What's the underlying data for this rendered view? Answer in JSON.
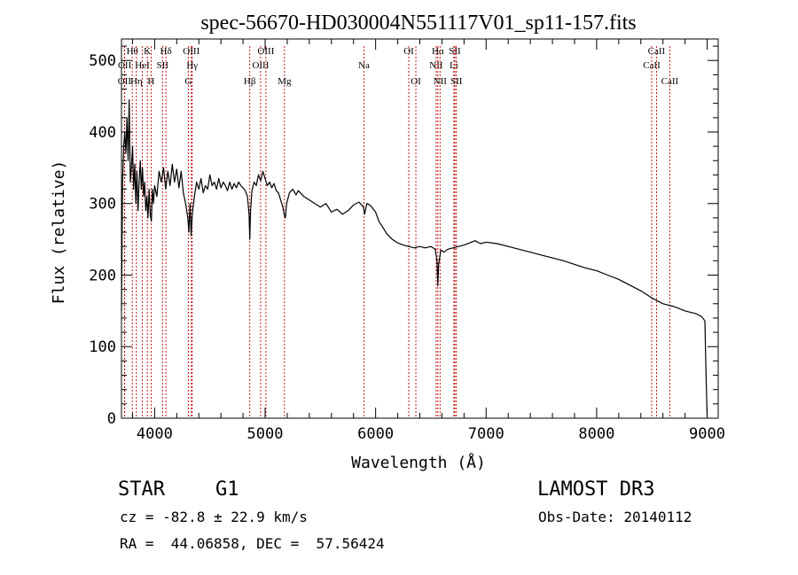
{
  "chart_data": {
    "type": "line",
    "title": "spec-56670-HD030004N551117V01_sp11-157.fits",
    "xlabel": "Wavelength (Å)",
    "ylabel": "Flux (relative)",
    "xlim": [
      3700,
      9100
    ],
    "ylim": [
      0,
      530
    ],
    "xticks": [
      4000,
      5000,
      6000,
      7000,
      8000,
      9000
    ],
    "yticks": [
      0,
      100,
      200,
      300,
      400,
      500
    ],
    "grid": false,
    "series": [
      {
        "name": "spectrum",
        "color": "#000000",
        "points": [
          [
            3700,
            150
          ],
          [
            3710,
            330
          ],
          [
            3720,
            380
          ],
          [
            3730,
            400
          ],
          [
            3740,
            370
          ],
          [
            3750,
            420
          ],
          [
            3760,
            360
          ],
          [
            3770,
            445
          ],
          [
            3780,
            330
          ],
          [
            3790,
            350
          ],
          [
            3800,
            380
          ],
          [
            3810,
            320
          ],
          [
            3820,
            355
          ],
          [
            3830,
            300
          ],
          [
            3840,
            345
          ],
          [
            3850,
            290
          ],
          [
            3860,
            330
          ],
          [
            3870,
            360
          ],
          [
            3880,
            320
          ],
          [
            3890,
            350
          ],
          [
            3900,
            310
          ],
          [
            3910,
            330
          ],
          [
            3920,
            290
          ],
          [
            3930,
            310
          ],
          [
            3940,
            280
          ],
          [
            3950,
            320
          ],
          [
            3960,
            285
          ],
          [
            3970,
            275
          ],
          [
            3980,
            320
          ],
          [
            3990,
            300
          ],
          [
            4000,
            325
          ],
          [
            4020,
            310
          ],
          [
            4040,
            345
          ],
          [
            4060,
            330
          ],
          [
            4080,
            350
          ],
          [
            4100,
            320
          ],
          [
            4120,
            345
          ],
          [
            4140,
            325
          ],
          [
            4160,
            355
          ],
          [
            4180,
            330
          ],
          [
            4200,
            348
          ],
          [
            4220,
            322
          ],
          [
            4240,
            345
          ],
          [
            4260,
            315
          ],
          [
            4280,
            300
          ],
          [
            4300,
            280
          ],
          [
            4310,
            260
          ],
          [
            4320,
            300
          ],
          [
            4330,
            255
          ],
          [
            4340,
            285
          ],
          [
            4360,
            310
          ],
          [
            4380,
            330
          ],
          [
            4400,
            320
          ],
          [
            4420,
            335
          ],
          [
            4440,
            315
          ],
          [
            4460,
            325
          ],
          [
            4480,
            320
          ],
          [
            4500,
            340
          ],
          [
            4520,
            325
          ],
          [
            4540,
            330
          ],
          [
            4560,
            320
          ],
          [
            4580,
            335
          ],
          [
            4600,
            322
          ],
          [
            4620,
            330
          ],
          [
            4640,
            325
          ],
          [
            4660,
            318
          ],
          [
            4680,
            330
          ],
          [
            4700,
            320
          ],
          [
            4720,
            328
          ],
          [
            4740,
            322
          ],
          [
            4760,
            330
          ],
          [
            4780,
            325
          ],
          [
            4800,
            322
          ],
          [
            4820,
            318
          ],
          [
            4840,
            310
          ],
          [
            4855,
            285
          ],
          [
            4861,
            250
          ],
          [
            4868,
            290
          ],
          [
            4880,
            318
          ],
          [
            4900,
            330
          ],
          [
            4920,
            325
          ],
          [
            4940,
            340
          ],
          [
            4960,
            332
          ],
          [
            4980,
            345
          ],
          [
            5000,
            335
          ],
          [
            5020,
            325
          ],
          [
            5040,
            330
          ],
          [
            5060,
            322
          ],
          [
            5080,
            328
          ],
          [
            5100,
            318
          ],
          [
            5120,
            315
          ],
          [
            5140,
            305
          ],
          [
            5160,
            295
          ],
          [
            5172,
            285
          ],
          [
            5183,
            280
          ],
          [
            5195,
            300
          ],
          [
            5220,
            315
          ],
          [
            5250,
            320
          ],
          [
            5280,
            312
          ],
          [
            5300,
            318
          ],
          [
            5350,
            310
          ],
          [
            5400,
            305
          ],
          [
            5450,
            300
          ],
          [
            5500,
            295
          ],
          [
            5550,
            300
          ],
          [
            5600,
            288
          ],
          [
            5650,
            292
          ],
          [
            5700,
            285
          ],
          [
            5750,
            290
          ],
          [
            5800,
            298
          ],
          [
            5850,
            302
          ],
          [
            5890,
            295
          ],
          [
            5900,
            285
          ],
          [
            5920,
            300
          ],
          [
            5950,
            298
          ],
          [
            6000,
            288
          ],
          [
            6030,
            275
          ],
          [
            6060,
            268
          ],
          [
            6100,
            258
          ],
          [
            6150,
            250
          ],
          [
            6200,
            245
          ],
          [
            6250,
            242
          ],
          [
            6300,
            240
          ],
          [
            6350,
            238
          ],
          [
            6400,
            240
          ],
          [
            6450,
            238
          ],
          [
            6500,
            240
          ],
          [
            6540,
            236
          ],
          [
            6555,
            220
          ],
          [
            6563,
            185
          ],
          [
            6570,
            215
          ],
          [
            6590,
            235
          ],
          [
            6620,
            232
          ],
          [
            6650,
            236
          ],
          [
            6700,
            238
          ],
          [
            6750,
            240
          ],
          [
            6800,
            242
          ],
          [
            6850,
            245
          ],
          [
            6900,
            248
          ],
          [
            6950,
            244
          ],
          [
            7000,
            246
          ],
          [
            7100,
            244
          ],
          [
            7200,
            240
          ],
          [
            7300,
            236
          ],
          [
            7400,
            232
          ],
          [
            7500,
            228
          ],
          [
            7600,
            224
          ],
          [
            7700,
            220
          ],
          [
            7800,
            215
          ],
          [
            7900,
            210
          ],
          [
            8000,
            206
          ],
          [
            8100,
            200
          ],
          [
            8200,
            194
          ],
          [
            8300,
            186
          ],
          [
            8400,
            178
          ],
          [
            8500,
            168
          ],
          [
            8600,
            160
          ],
          [
            8700,
            156
          ],
          [
            8800,
            150
          ],
          [
            8900,
            146
          ],
          [
            8950,
            142
          ],
          [
            8980,
            136
          ],
          [
            8990,
            60
          ],
          [
            9000,
            5
          ]
        ]
      }
    ],
    "lines": [
      {
        "label": "OII",
        "wavelength": 3727,
        "row": 3
      },
      {
        "label": "OII",
        "wavelength": 3729,
        "row": 2
      },
      {
        "label": "Hθ",
        "wavelength": 3798,
        "row": 1
      },
      {
        "label": "Hη",
        "wavelength": 3835,
        "row": 3
      },
      {
        "label": "HeI",
        "wavelength": 3889,
        "row": 2
      },
      {
        "label": "K",
        "wavelength": 3934,
        "row": 1
      },
      {
        "label": "H",
        "wavelength": 3968,
        "row": 3
      },
      {
        "label": "SII",
        "wavelength": 4072,
        "row": 2
      },
      {
        "label": "Hδ",
        "wavelength": 4102,
        "row": 1
      },
      {
        "label": "G",
        "wavelength": 4305,
        "row": 3
      },
      {
        "label": "OIII",
        "wavelength": 4332,
        "row": 1
      },
      {
        "label": "Hγ",
        "wavelength": 4340,
        "row": 2
      },
      {
        "label": "Hβ",
        "wavelength": 4861,
        "row": 3
      },
      {
        "label": "OIII",
        "wavelength": 4959,
        "row": 2
      },
      {
        "label": "OIII",
        "wavelength": 5007,
        "row": 1
      },
      {
        "label": "Mg",
        "wavelength": 5175,
        "row": 3
      },
      {
        "label": "Na",
        "wavelength": 5894,
        "row": 2
      },
      {
        "label": "OI",
        "wavelength": 6300,
        "row": 1
      },
      {
        "label": "OI",
        "wavelength": 6364,
        "row": 3
      },
      {
        "label": "NII",
        "wavelength": 6548,
        "row": 2
      },
      {
        "label": "Hα",
        "wavelength": 6563,
        "row": 1
      },
      {
        "label": "NII",
        "wavelength": 6583,
        "row": 3
      },
      {
        "label": "SII",
        "wavelength": 6717,
        "row": 1
      },
      {
        "label": "Li",
        "wavelength": 6708,
        "row": 2
      },
      {
        "label": "SII",
        "wavelength": 6731,
        "row": 3
      },
      {
        "label": "CaII",
        "wavelength": 8498,
        "row": 2
      },
      {
        "label": "CaII",
        "wavelength": 8542,
        "row": 1
      },
      {
        "label": "CaII",
        "wavelength": 8662,
        "row": 3
      }
    ],
    "line_color": "#c00000"
  },
  "info": {
    "object_class": "STAR",
    "subclass": "G1",
    "survey": "LAMOST DR3",
    "redshift": "cz = -82.8 ± 22.9 km/s",
    "obs_date": "Obs-Date: 20140112",
    "coords": "RA =  44.06858, DEC =  57.56424"
  }
}
